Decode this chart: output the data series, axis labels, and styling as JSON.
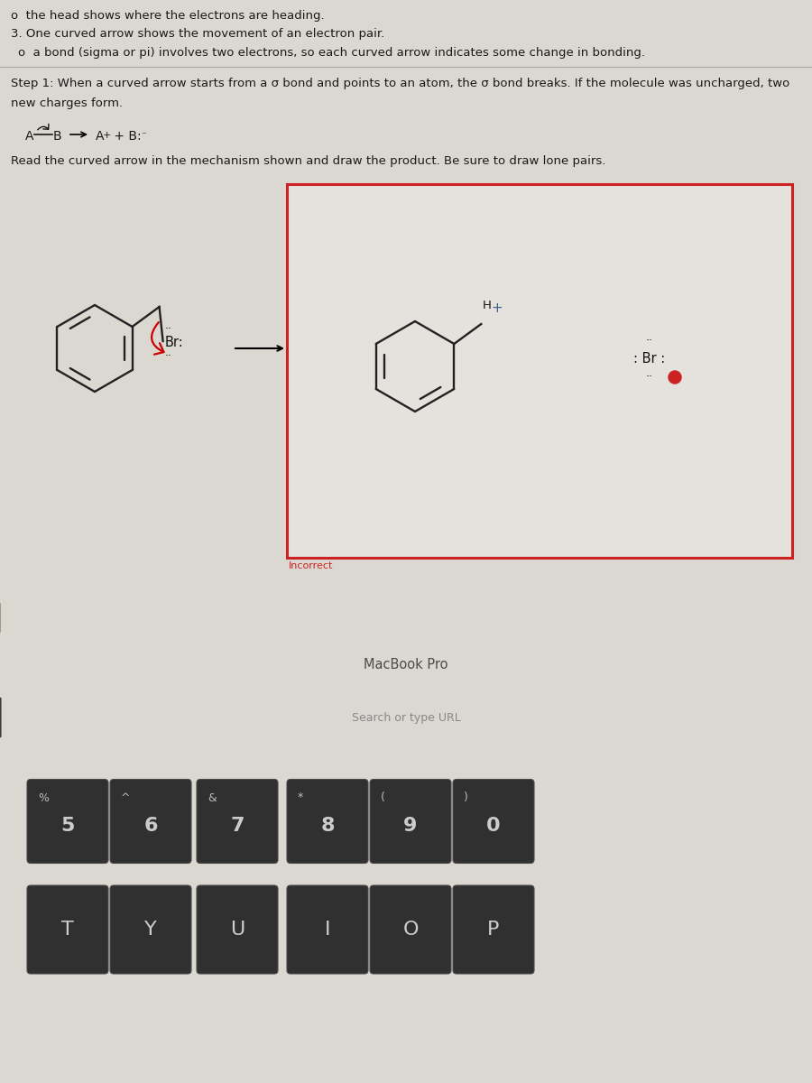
{
  "bg_page": "#dbd8d2",
  "bg_content": "#eceae5",
  "bg_laptop_body": "#1c1c1c",
  "bg_taskbar": "#2e2e2e",
  "bg_keyboard": "#1a1a1a",
  "bg_key": "#353535",
  "bg_touchbar": "#111111",
  "text_dark": "#1a1a1a",
  "text_gray": "#666666",
  "red_box_color": "#cc2222",
  "incorrect_color": "#cc2222",
  "title_line": "o  the head shows where the electrons are heading.",
  "bullet1": "3. One curved arrow shows the movement of an electron pair.",
  "bullet2": "o  a bond (sigma or pi) involves two electrons, so each curved arrow indicates some change in bonding.",
  "step1_line1": "Step 1: When a curved arrow starts from a σ bond and points to an atom, the σ bond breaks. If the molecule was uncharged, two",
  "step1_line2": "new charges form.",
  "instruction": "Read the curved arrow in the mechanism shown and draw the product. Be sure to draw lone pairs.",
  "incorrect_label": "Incorrect",
  "macbook_text": "MacBook Pro",
  "search_text": "Search or type URL",
  "key_row1_top": [
    "%",
    "^",
    "&",
    "*",
    "(",
    ")",
    ""
  ],
  "key_row1_bot": [
    "5",
    "6",
    "7",
    "8",
    "9",
    "0",
    ""
  ],
  "key_row2": [
    "T",
    "Y",
    "U",
    "I",
    "O",
    "P"
  ]
}
